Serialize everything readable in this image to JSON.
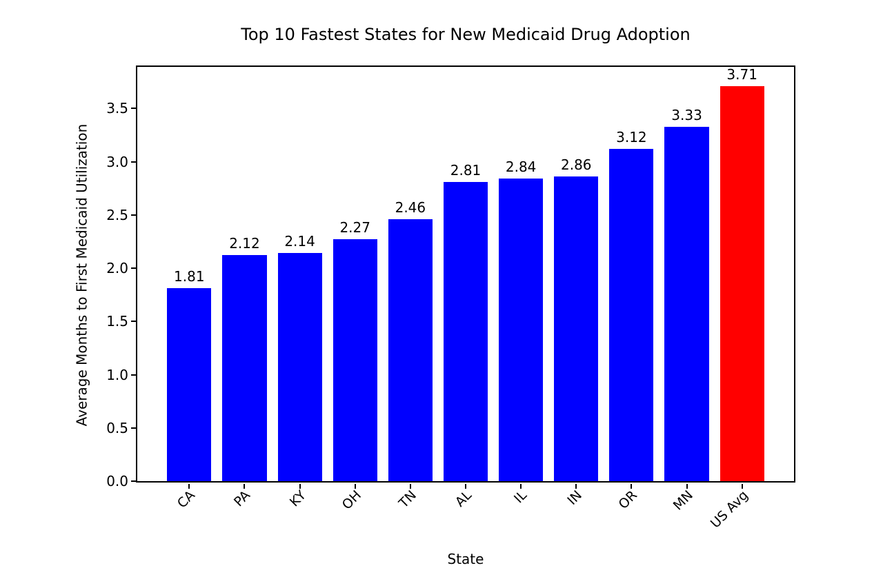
{
  "chart_data": {
    "type": "bar",
    "title": "Top 10 Fastest States for New Medicaid Drug Adoption",
    "xlabel": "State",
    "ylabel": "Average Months to First Medicaid Utilization",
    "categories": [
      "CA",
      "PA",
      "KY",
      "OH",
      "TN",
      "AL",
      "IL",
      "IN",
      "OR",
      "MN",
      "US Avg"
    ],
    "values": [
      1.81,
      2.12,
      2.14,
      2.27,
      2.46,
      2.81,
      2.84,
      2.86,
      3.12,
      3.33,
      3.71
    ],
    "value_labels": [
      "1.81",
      "2.12",
      "2.14",
      "2.27",
      "2.46",
      "2.81",
      "2.84",
      "2.86",
      "3.12",
      "3.33",
      "3.71"
    ],
    "bar_colors": [
      "#0000FF",
      "#0000FF",
      "#0000FF",
      "#0000FF",
      "#0000FF",
      "#0000FF",
      "#0000FF",
      "#0000FF",
      "#0000FF",
      "#0000FF",
      "#FF0000"
    ],
    "default_bar_color": "#0000FF",
    "highlight_bar_color": "#FF0000",
    "highlight_category": "US Avg",
    "ytick_labels": [
      "0.0",
      "0.5",
      "1.0",
      "1.5",
      "2.0",
      "2.5",
      "3.0",
      "3.5"
    ],
    "yticks": [
      0.0,
      0.5,
      1.0,
      1.5,
      2.0,
      2.5,
      3.0,
      3.5
    ],
    "ylim": [
      0,
      3.89
    ],
    "xlim": [
      -0.94,
      10.94
    ],
    "bar_width_fraction": 0.8,
    "grid": false,
    "legend": "none",
    "background_color": "#ffffff",
    "spine_color": "#000000"
  }
}
